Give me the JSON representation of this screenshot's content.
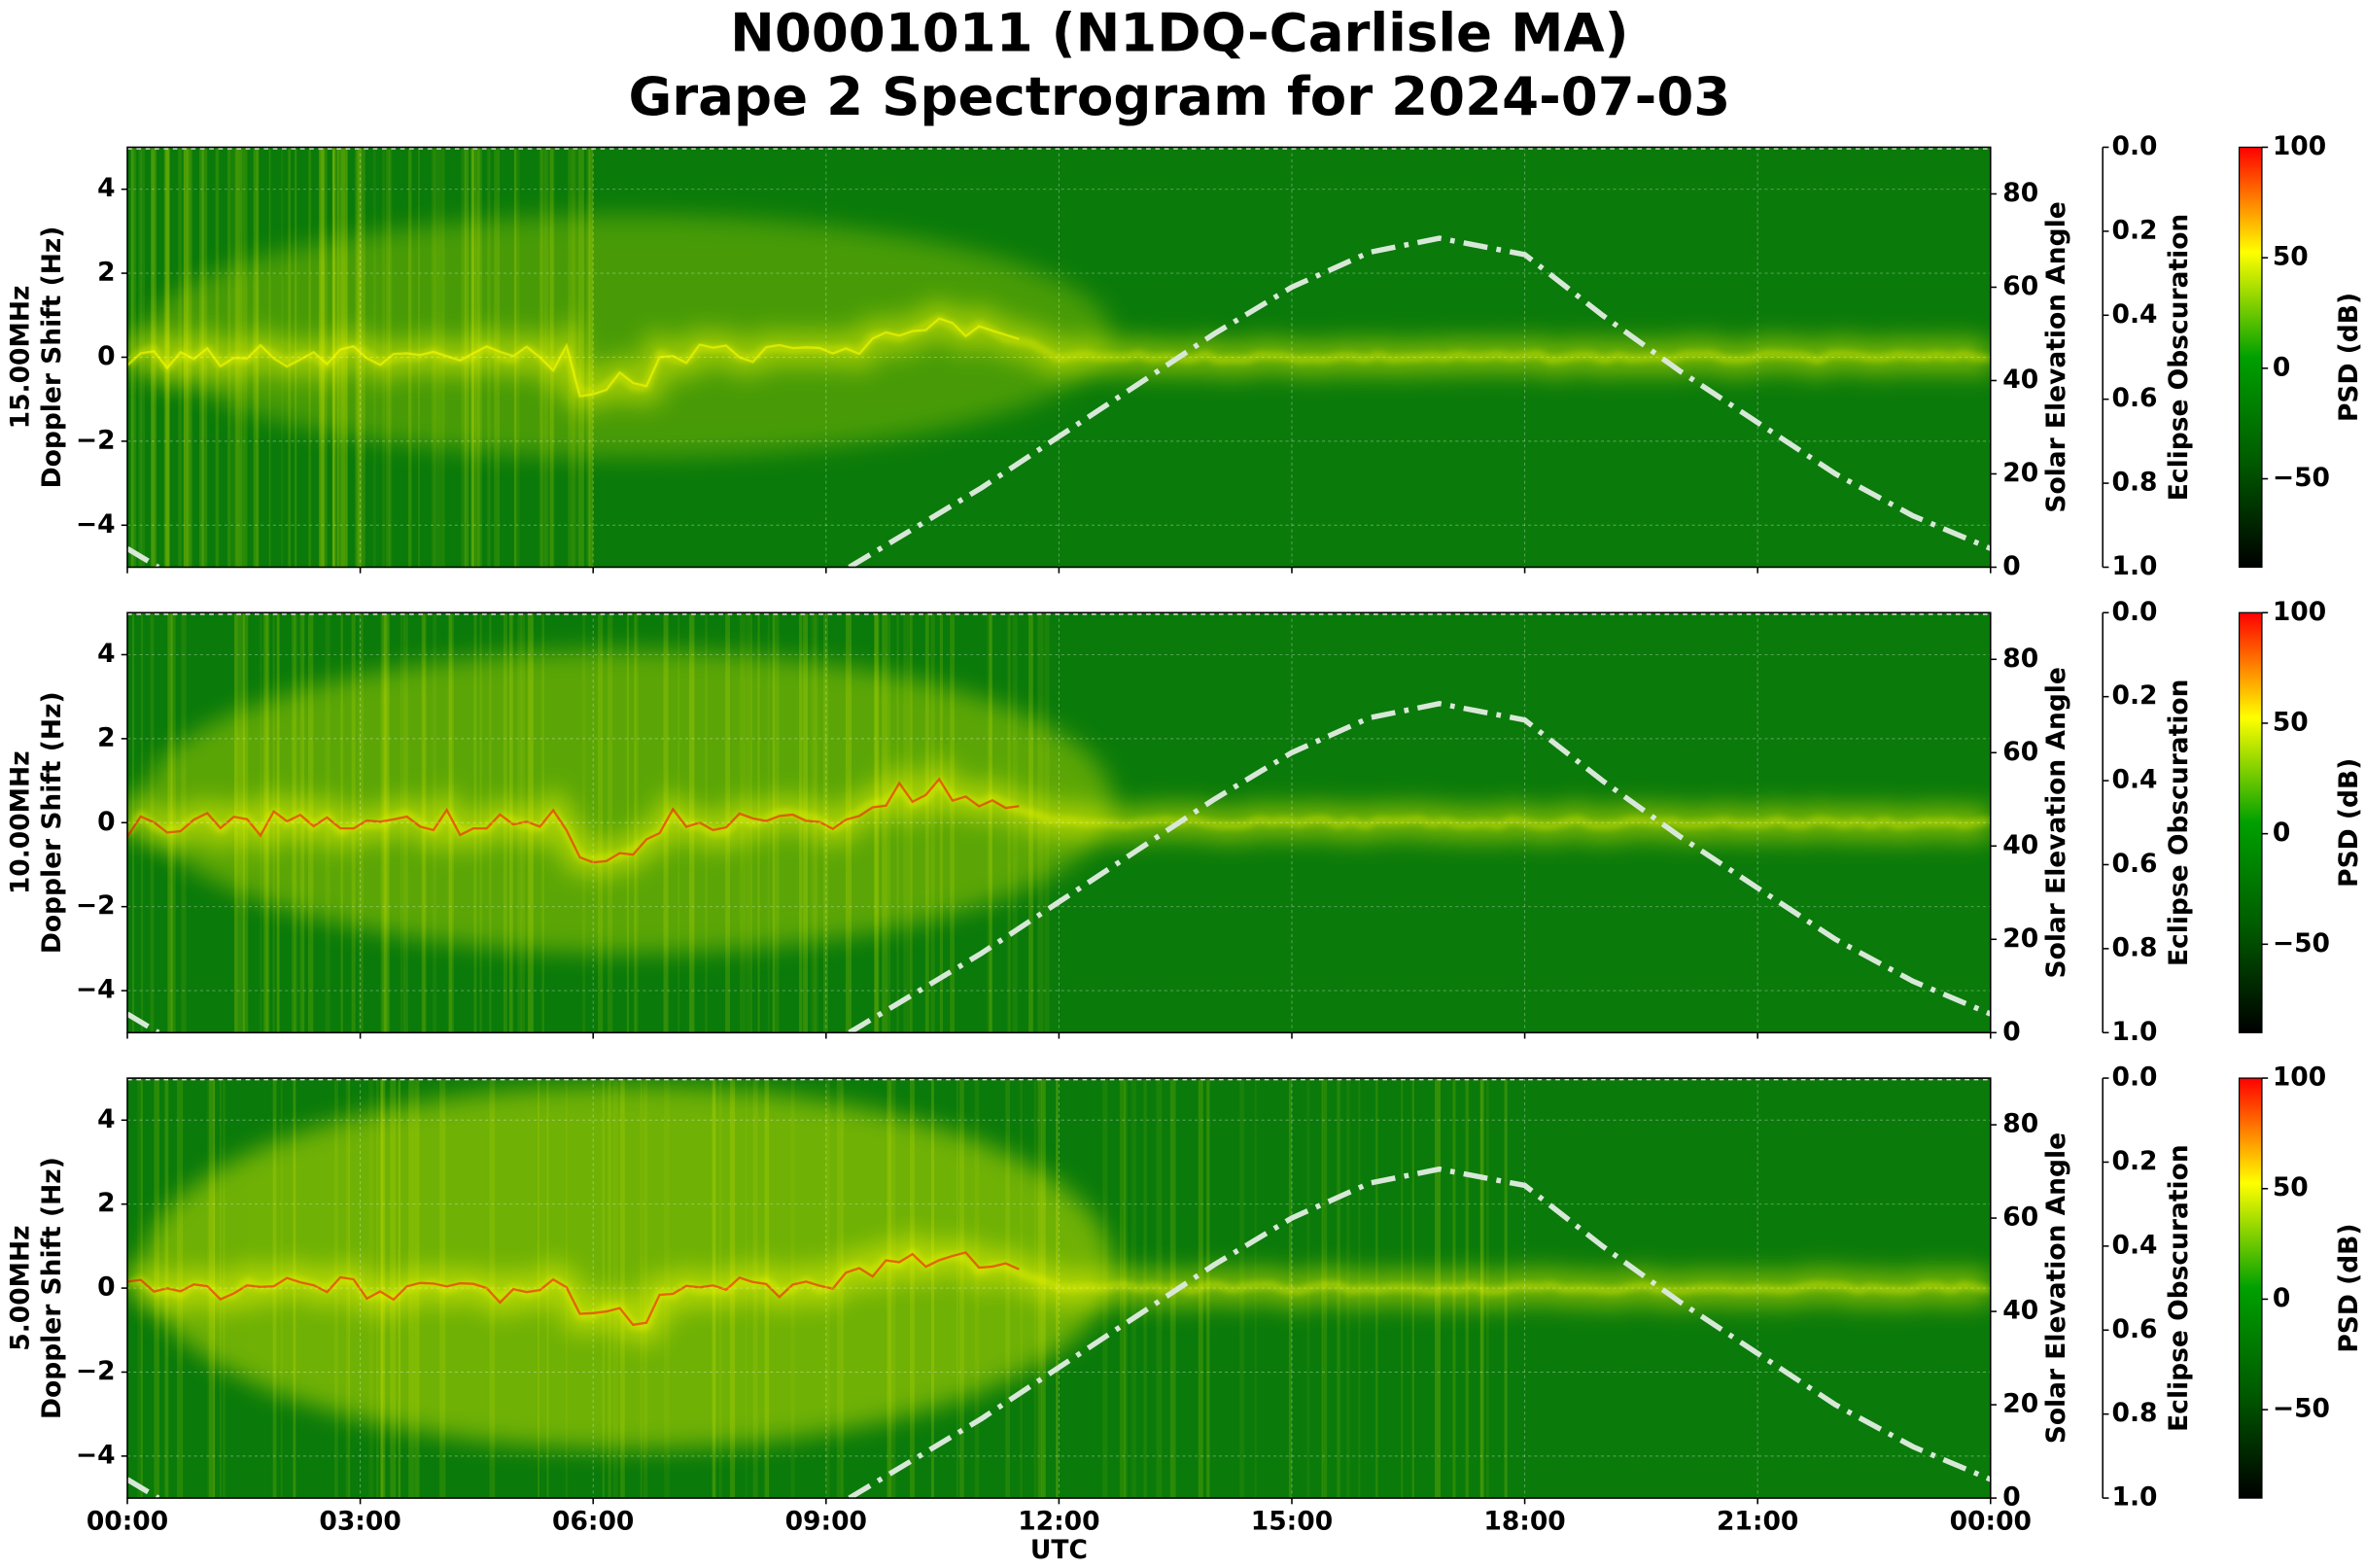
{
  "page": {
    "title_lines": [
      "N0001011 (N1DQ-Carlisle MA)",
      "Grape 2 Spectrogram for 2024-07-03"
    ]
  },
  "chart_data": [
    {
      "type": "spectrogram",
      "freq_label": "15.00MHz",
      "ylabel": "Doppler Shift (Hz)",
      "y2label": "Solar Elevation Angle",
      "y3label": "Eclipse Obscuration",
      "colorbar_label": "PSD (dB)",
      "xlim": [
        0,
        24
      ],
      "xticks": [
        0,
        3,
        6,
        9,
        12,
        15,
        18,
        21,
        24
      ],
      "ylim": [
        -5,
        5
      ],
      "yticks": [
        {
          "value": -4,
          "label": "−4"
        },
        {
          "value": -2,
          "label": "−2"
        },
        0,
        2,
        4
      ],
      "y2lim": [
        0,
        90
      ],
      "y2ticks": [
        0,
        20,
        40,
        60,
        80
      ],
      "y3lim": [
        0,
        1
      ],
      "y3_inverted": true,
      "y3ticks": [
        {
          "value": 0,
          "label": "0.0"
        },
        0.2,
        0.4,
        0.6,
        0.8,
        {
          "value": 1,
          "label": "1.0"
        }
      ],
      "clim": [
        -90,
        100
      ],
      "cticks": [
        {
          "value": -50,
          "label": "−50"
        },
        0,
        50,
        100
      ],
      "colormap": [
        "#000000",
        "#005a00",
        "#00a000",
        "#ffff00",
        "#ff0000"
      ],
      "grid": true,
      "series": [
        {
          "name": "Solar Elevation Angle",
          "color": "#d8e8d8",
          "axis": "y2",
          "x": [
            0,
            0.4,
            1,
            9.3,
            10,
            11,
            12,
            13,
            14,
            15,
            16,
            16.9,
            18,
            19,
            20,
            21,
            22,
            23,
            24
          ],
          "values": [
            4,
            0,
            null,
            0,
            7,
            17,
            28,
            39,
            50,
            60,
            67.5,
            70.5,
            67,
            54,
            42,
            31,
            20,
            11,
            4
          ]
        }
      ]
    },
    {
      "type": "spectrogram",
      "freq_label": "10.00MHz",
      "ylabel": "Doppler Shift (Hz)",
      "y2label": "Solar Elevation Angle",
      "y3label": "Eclipse Obscuration",
      "colorbar_label": "PSD (dB)",
      "xlim": [
        0,
        24
      ],
      "xticks": [
        0,
        3,
        6,
        9,
        12,
        15,
        18,
        21,
        24
      ],
      "ylim": [
        -5,
        5
      ],
      "yticks": [
        {
          "value": -4,
          "label": "−4"
        },
        {
          "value": -2,
          "label": "−2"
        },
        0,
        2,
        4
      ],
      "y2lim": [
        0,
        90
      ],
      "y2ticks": [
        0,
        20,
        40,
        60,
        80
      ],
      "y3lim": [
        0,
        1
      ],
      "y3_inverted": true,
      "y3ticks": [
        {
          "value": 0,
          "label": "0.0"
        },
        0.2,
        0.4,
        0.6,
        0.8,
        {
          "value": 1,
          "label": "1.0"
        }
      ],
      "clim": [
        -90,
        100
      ],
      "cticks": [
        {
          "value": -50,
          "label": "−50"
        },
        0,
        50,
        100
      ],
      "colormap": [
        "#000000",
        "#005a00",
        "#00a000",
        "#ffff00",
        "#ff0000"
      ],
      "grid": true,
      "series": [
        {
          "name": "Solar Elevation Angle",
          "color": "#d8e8d8",
          "axis": "y2",
          "x": [
            0,
            0.4,
            1,
            9.3,
            10,
            11,
            12,
            13,
            14,
            15,
            16,
            16.9,
            18,
            19,
            20,
            21,
            22,
            23,
            24
          ],
          "values": [
            4,
            0,
            null,
            0,
            7,
            17,
            28,
            39,
            50,
            60,
            67.5,
            70.5,
            67,
            54,
            42,
            31,
            20,
            11,
            4
          ]
        }
      ]
    },
    {
      "type": "spectrogram",
      "freq_label": "5.00MHz",
      "ylabel": "Doppler Shift (Hz)",
      "y2label": "Solar Elevation Angle",
      "y3label": "Eclipse Obscuration",
      "colorbar_label": "PSD (dB)",
      "xlabel": "UTC",
      "xlim": [
        0,
        24
      ],
      "xticks": [
        {
          "value": 0,
          "label": "00:00"
        },
        {
          "value": 3,
          "label": "03:00"
        },
        {
          "value": 6,
          "label": "06:00"
        },
        {
          "value": 9,
          "label": "09:00"
        },
        {
          "value": 12,
          "label": "12:00"
        },
        {
          "value": 15,
          "label": "15:00"
        },
        {
          "value": 18,
          "label": "18:00"
        },
        {
          "value": 21,
          "label": "21:00"
        },
        {
          "value": 24,
          "label": "00:00"
        }
      ],
      "ylim": [
        -5,
        5
      ],
      "yticks": [
        {
          "value": -4,
          "label": "−4"
        },
        {
          "value": -2,
          "label": "−2"
        },
        0,
        2,
        4
      ],
      "y2lim": [
        0,
        90
      ],
      "y2ticks": [
        0,
        20,
        40,
        60,
        80
      ],
      "y3lim": [
        0,
        1
      ],
      "y3_inverted": true,
      "y3ticks": [
        {
          "value": 0,
          "label": "0.0"
        },
        0.2,
        0.4,
        0.6,
        0.8,
        {
          "value": 1,
          "label": "1.0"
        }
      ],
      "clim": [
        -90,
        100
      ],
      "cticks": [
        {
          "value": -50,
          "label": "−50"
        },
        0,
        50,
        100
      ],
      "colormap": [
        "#000000",
        "#005a00",
        "#00a000",
        "#ffff00",
        "#ff0000"
      ],
      "grid": true,
      "series": [
        {
          "name": "Solar Elevation Angle",
          "color": "#d8e8d8",
          "axis": "y2",
          "x": [
            0,
            0.4,
            1,
            9.3,
            10,
            11,
            12,
            13,
            14,
            15,
            16,
            16.9,
            18,
            19,
            20,
            21,
            22,
            23,
            24
          ],
          "values": [
            4,
            0,
            null,
            0,
            7,
            17,
            28,
            39,
            50,
            60,
            67.5,
            70.5,
            67,
            54,
            42,
            31,
            20,
            11,
            4
          ]
        }
      ]
    }
  ]
}
